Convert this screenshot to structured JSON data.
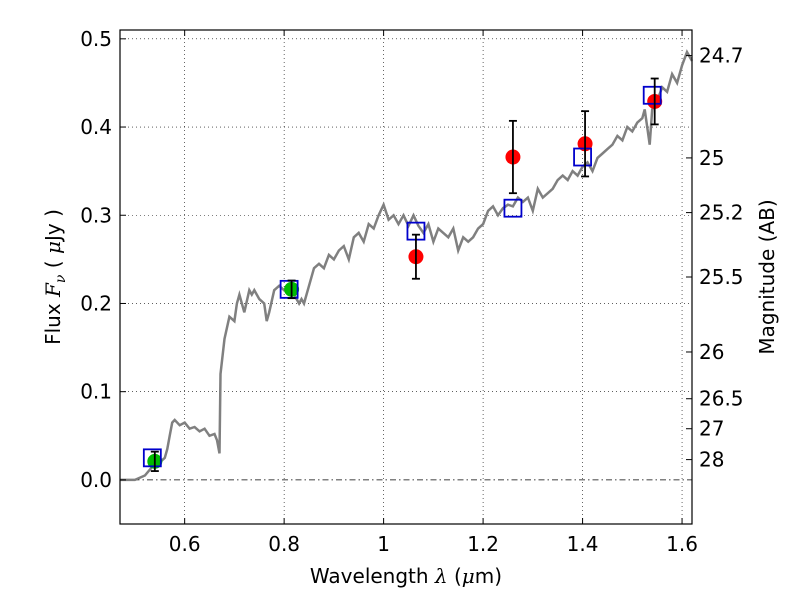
{
  "chart_data": {
    "type": "scatter",
    "xlabel": "Wavelength  λ (μm)",
    "xlabel_parts": {
      "pre": "Wavelength  ",
      "sym": "λ",
      "post": " (",
      "mu": "μ",
      "unit": "m)"
    },
    "ylabel": "Flux  Fν  ( μJy )",
    "ylabel_parts": {
      "pre": "Flux  ",
      "sym": "F",
      "sub": "ν",
      "mid": "  ( ",
      "mu": "μ",
      "unit": "Jy )"
    },
    "ylabel_right": "Magnitude (AB)",
    "xlim": [
      0.47,
      1.62
    ],
    "ylim": [
      -0.05,
      0.51
    ],
    "grid": true,
    "x_ticks": [
      0.6,
      0.8,
      1.0,
      1.2,
      1.4,
      1.6
    ],
    "x_tick_labels": [
      "0.6",
      "0.8",
      "1",
      "1.2",
      "1.4",
      "1.6"
    ],
    "y_ticks": [
      0.0,
      0.1,
      0.2,
      0.3,
      0.4,
      0.5
    ],
    "y_tick_labels": [
      "0.0",
      "0.1",
      "0.2",
      "0.3",
      "0.4",
      "0.5"
    ],
    "mag_ticks": [
      {
        "label": "24.7",
        "flux": 0.481
      },
      {
        "label": "25",
        "flux": 0.365
      },
      {
        "label": "25.2",
        "flux": 0.303
      },
      {
        "label": "25.5",
        "flux": 0.23
      },
      {
        "label": "26",
        "flux": 0.145
      },
      {
        "label": "26.5",
        "flux": 0.092
      },
      {
        "label": "27",
        "flux": 0.058
      },
      {
        "label": "28",
        "flux": 0.023
      }
    ],
    "model_spectrum": {
      "color": "#808080",
      "x": [
        0.47,
        0.5,
        0.52,
        0.535,
        0.55,
        0.56,
        0.565,
        0.57,
        0.575,
        0.58,
        0.59,
        0.6,
        0.61,
        0.62,
        0.63,
        0.64,
        0.65,
        0.66,
        0.665,
        0.67,
        0.672,
        0.68,
        0.69,
        0.7,
        0.705,
        0.71,
        0.72,
        0.73,
        0.735,
        0.74,
        0.75,
        0.76,
        0.765,
        0.77,
        0.78,
        0.79,
        0.8,
        0.81,
        0.82,
        0.83,
        0.835,
        0.84,
        0.85,
        0.86,
        0.87,
        0.88,
        0.89,
        0.9,
        0.91,
        0.92,
        0.93,
        0.94,
        0.95,
        0.96,
        0.97,
        0.98,
        0.99,
        1.0,
        1.01,
        1.02,
        1.03,
        1.04,
        1.05,
        1.06,
        1.07,
        1.08,
        1.09,
        1.1,
        1.11,
        1.12,
        1.13,
        1.14,
        1.15,
        1.16,
        1.17,
        1.18,
        1.19,
        1.2,
        1.21,
        1.22,
        1.23,
        1.24,
        1.25,
        1.26,
        1.27,
        1.28,
        1.29,
        1.3,
        1.31,
        1.32,
        1.33,
        1.34,
        1.35,
        1.36,
        1.37,
        1.38,
        1.39,
        1.4,
        1.41,
        1.42,
        1.43,
        1.44,
        1.45,
        1.46,
        1.47,
        1.48,
        1.49,
        1.5,
        1.51,
        1.52,
        1.525,
        1.53,
        1.535,
        1.54,
        1.55,
        1.56,
        1.57,
        1.58,
        1.59,
        1.6,
        1.61,
        1.62
      ],
      "y": [
        0.0,
        0.0,
        0.005,
        0.015,
        0.02,
        0.025,
        0.035,
        0.05,
        0.065,
        0.068,
        0.062,
        0.065,
        0.058,
        0.06,
        0.055,
        0.058,
        0.05,
        0.052,
        0.045,
        0.03,
        0.12,
        0.16,
        0.185,
        0.18,
        0.2,
        0.21,
        0.19,
        0.215,
        0.21,
        0.215,
        0.205,
        0.2,
        0.18,
        0.19,
        0.215,
        0.22,
        0.215,
        0.22,
        0.21,
        0.2,
        0.205,
        0.2,
        0.22,
        0.24,
        0.245,
        0.24,
        0.255,
        0.25,
        0.26,
        0.265,
        0.25,
        0.275,
        0.28,
        0.27,
        0.29,
        0.285,
        0.3,
        0.312,
        0.295,
        0.3,
        0.29,
        0.3,
        0.288,
        0.3,
        0.288,
        0.28,
        0.29,
        0.27,
        0.285,
        0.28,
        0.275,
        0.285,
        0.26,
        0.275,
        0.27,
        0.275,
        0.285,
        0.29,
        0.305,
        0.31,
        0.3,
        0.308,
        0.312,
        0.31,
        0.32,
        0.315,
        0.32,
        0.305,
        0.33,
        0.32,
        0.325,
        0.33,
        0.34,
        0.345,
        0.34,
        0.35,
        0.345,
        0.355,
        0.36,
        0.35,
        0.365,
        0.37,
        0.375,
        0.38,
        0.39,
        0.385,
        0.4,
        0.395,
        0.405,
        0.41,
        0.42,
        0.4,
        0.38,
        0.42,
        0.43,
        0.445,
        0.44,
        0.46,
        0.45,
        0.47,
        0.485,
        0.475
      ]
    },
    "series": [
      {
        "name": "observed_red",
        "color": "#ff0000",
        "marker": "circle",
        "points": [
          {
            "x": 1.065,
            "y": 0.253,
            "err": 0.025
          },
          {
            "x": 1.26,
            "y": 0.366,
            "err": 0.041
          },
          {
            "x": 1.405,
            "y": 0.381,
            "err": 0.037
          },
          {
            "x": 1.545,
            "y": 0.429,
            "err": 0.026
          }
        ]
      },
      {
        "name": "observed_green",
        "color": "#00bb00",
        "marker": "circle",
        "points": [
          {
            "x": 0.54,
            "y": 0.021,
            "err": 0.011
          },
          {
            "x": 0.815,
            "y": 0.216,
            "err": 0.01
          }
        ]
      },
      {
        "name": "model_boxes",
        "color": "#0000cc",
        "marker": "square",
        "points": [
          {
            "x": 0.535,
            "y": 0.025
          },
          {
            "x": 0.81,
            "y": 0.216
          },
          {
            "x": 1.065,
            "y": 0.282
          },
          {
            "x": 1.26,
            "y": 0.308
          },
          {
            "x": 1.4,
            "y": 0.366
          },
          {
            "x": 1.54,
            "y": 0.436
          }
        ]
      }
    ]
  }
}
